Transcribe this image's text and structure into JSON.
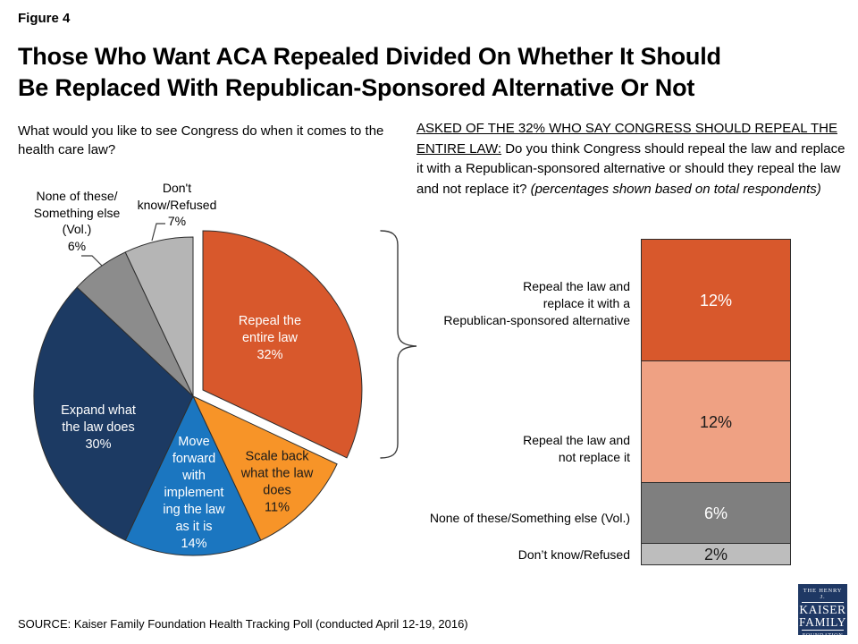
{
  "figure_label": "Figure 4",
  "title": {
    "line1": "Those Who Want ACA Repealed Divided On Whether It Should",
    "line2": "Be Replaced With Republican-Sponsored Alternative Or Not"
  },
  "source": "SOURCE: Kaiser Family Foundation Health Tracking Poll (conducted April 12-19, 2016)",
  "logo": {
    "top": "THE HENRY J.",
    "name1": "KAISER",
    "name2": "FAMILY",
    "bottom": "FOUNDATION"
  },
  "chart_data": [
    {
      "type": "pie",
      "title": "What would you like to see Congress do when it comes to the health care law?",
      "start_angle_deg": 0,
      "direction": "clockwise",
      "slices": [
        {
          "label": "Repeal the entire law",
          "value": 32,
          "color": "#D8582C",
          "text_color": "#FFFFFF",
          "exploded": true,
          "label_position": "inside",
          "label_display": "Repeal the\nentire law\n32%"
        },
        {
          "label": "Scale back what the law does",
          "value": 11,
          "color": "#F79428",
          "text_color": "#1A1A1A",
          "exploded": false,
          "label_position": "inside",
          "label_display": "Scale back\nwhat the law\ndoes\n11%"
        },
        {
          "label": "Move forward with implementing the law as it is",
          "value": 14,
          "color": "#1B76C0",
          "text_color": "#FFFFFF",
          "exploded": false,
          "label_position": "inside",
          "label_display": "Move\nforward\nwith\nimplement\ning the law\nas it is\n14%"
        },
        {
          "label": "Expand what the law does",
          "value": 30,
          "color": "#1C3A63",
          "text_color": "#FFFFFF",
          "exploded": false,
          "label_position": "inside",
          "label_display": "Expand what\nthe law does\n30%"
        },
        {
          "label": "None of these/Something else (Vol.)",
          "value": 6,
          "color": "#8C8C8C",
          "text_color": "#1A1A1A",
          "exploded": false,
          "label_position": "outside",
          "label_display": "None of these/\nSomething else\n(Vol.)\n6%"
        },
        {
          "label": "Don't know/Refused",
          "value": 7,
          "color": "#B5B5B5",
          "text_color": "#1A1A1A",
          "exploded": false,
          "label_position": "outside",
          "label_display": "Don't\nknow/Refused\n7%"
        }
      ]
    },
    {
      "type": "bar",
      "stacked": true,
      "unit": "%",
      "question_lead": "ASKED OF THE 32% WHO SAY CONGRESS SHOULD REPEAL THE ENTIRE LAW:",
      "question_body": " Do you think Congress should repeal the law and replace it with a Republican-sponsored alternative or should they repeal the law and not replace it? ",
      "question_note": "(percentages shown based on total respondents)",
      "segments": [
        {
          "label": "Repeal the law and replace it with a Republican-sponsored alternative",
          "value": 12,
          "color": "#D8582C",
          "text_color": "#FFFFFF",
          "label_display": "Repeal the law and\nreplace it with a\nRepublican-sponsored alternative"
        },
        {
          "label": "Repeal the law and not replace it",
          "value": 12,
          "color": "#EFA183",
          "text_color": "#1A1A1A",
          "label_display": "Repeal the law and\nnot replace it"
        },
        {
          "label": "None of these/Something else (Vol.)",
          "value": 6,
          "color": "#7F7F7F",
          "text_color": "#FFFFFF",
          "label_display": "None of these/Something else (Vol.)"
        },
        {
          "label": "Don’t know/Refused",
          "value": 2,
          "color": "#BDBDBD",
          "text_color": "#1A1A1A",
          "label_display": "Don’t know/Refused"
        }
      ]
    }
  ]
}
